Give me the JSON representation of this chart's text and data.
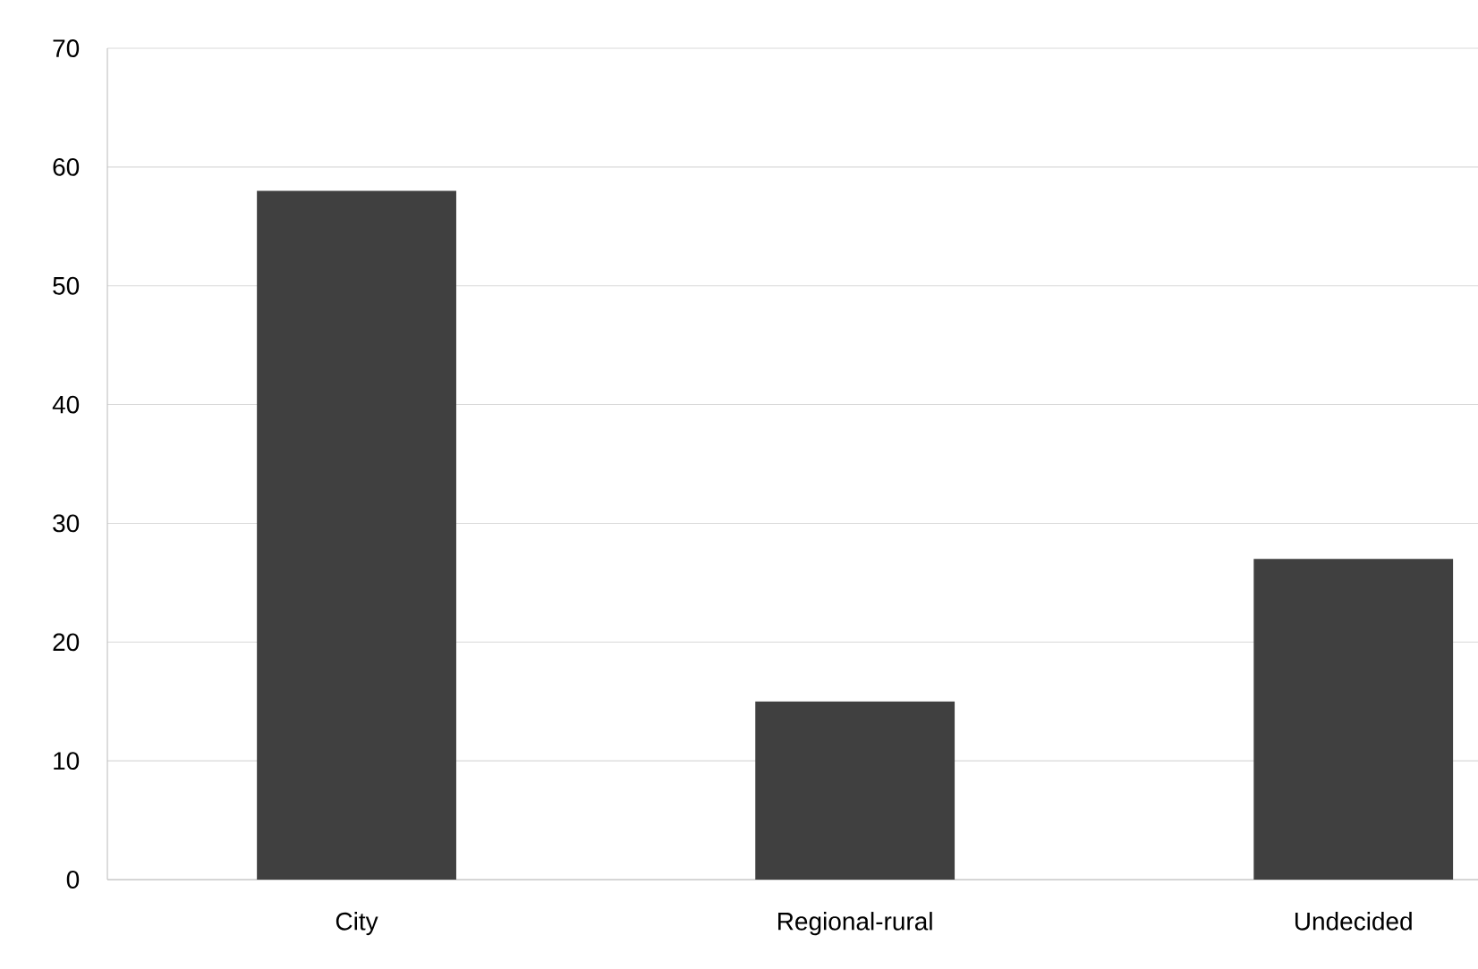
{
  "chart_data": {
    "type": "bar",
    "categories": [
      "City",
      "Regional-rural",
      "Undecided"
    ],
    "values": [
      58,
      15,
      27
    ],
    "color": "#404040",
    "ylim": [
      0,
      70
    ],
    "yticks": [
      0,
      10,
      20,
      30,
      40,
      50,
      60,
      70
    ],
    "grid": "y"
  }
}
